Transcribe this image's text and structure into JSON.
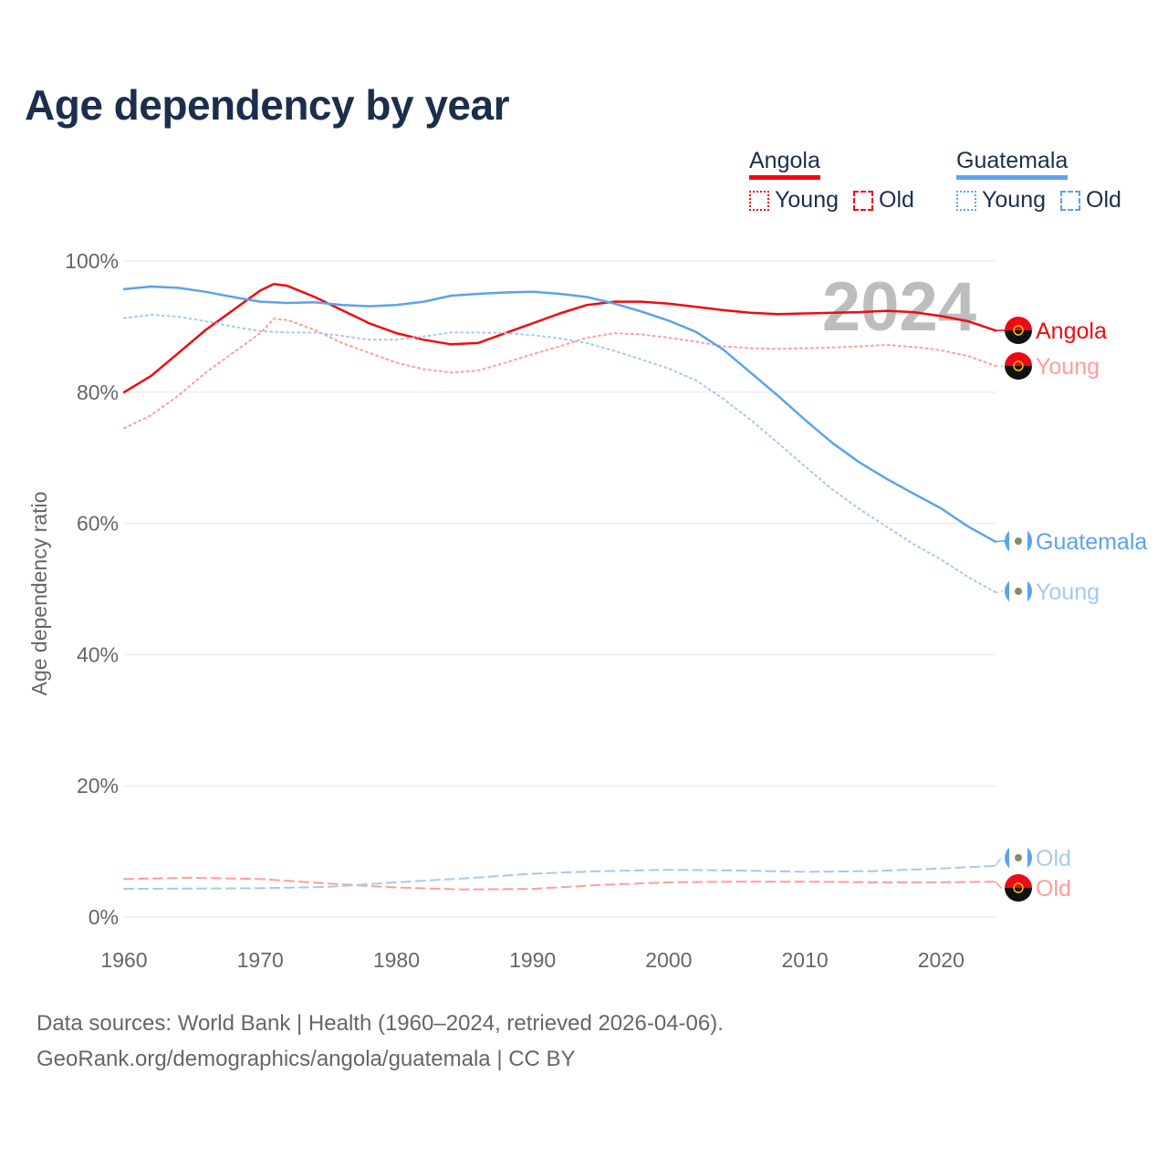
{
  "title": "Age dependency by year",
  "legend": [
    {
      "country": "Angola",
      "color": "#f00a10",
      "light": "#ff9d9a",
      "young_label": "Young",
      "old_label": "Old"
    },
    {
      "country": "Guatemala",
      "color": "#5ba3ec",
      "light": "#a6c9ee",
      "young_label": "Young",
      "old_label": "Old"
    }
  ],
  "footer": {
    "line1": "Data sources: World Bank | Health (1960–2024, retrieved 2026-04-06).",
    "line2": "GeoRank.org/demographics/angola/guatemala | CC BY"
  },
  "chart_data": {
    "type": "line",
    "title": "Age dependency by year",
    "xlabel": "",
    "ylabel": "Age dependency ratio",
    "xlim": [
      1960,
      2024
    ],
    "ylim": [
      0,
      100
    ],
    "x_ticks": [
      1960,
      1970,
      1980,
      1990,
      2000,
      2010,
      2020
    ],
    "y_ticks": [
      0,
      20,
      40,
      60,
      80,
      100
    ],
    "y_tick_labels": [
      "0%",
      "20%",
      "40%",
      "60%",
      "80%",
      "100%"
    ],
    "grid": true,
    "year_watermark": "2024",
    "series": [
      {
        "name": "Angola",
        "label": "Angola",
        "style": "solid",
        "color": "#f00a10",
        "label_color": "#f00a10",
        "x": [
          1960,
          1962,
          1964,
          1966,
          1968,
          1970,
          1971,
          1972,
          1974,
          1976,
          1978,
          1980,
          1982,
          1984,
          1986,
          1988,
          1990,
          1992,
          1994,
          1996,
          1998,
          2000,
          2002,
          2004,
          2006,
          2008,
          2010,
          2012,
          2014,
          2016,
          2018,
          2020,
          2022,
          2024
        ],
        "values": [
          80,
          82.5,
          86,
          89.5,
          92.5,
          95.5,
          96.5,
          96.2,
          94.5,
          92.5,
          90.5,
          89,
          88,
          87.3,
          87.5,
          89,
          90.5,
          92,
          93.3,
          93.8,
          93.8,
          93.5,
          93,
          92.5,
          92.1,
          91.9,
          92,
          92.1,
          92.2,
          92.4,
          92.2,
          91.6,
          90.8,
          89.4
        ]
      },
      {
        "name": "Angola Young",
        "label": "Young",
        "style": "dotted",
        "color": "#ff9d9a",
        "label_color": "#ff9d9a",
        "x": [
          1960,
          1962,
          1964,
          1966,
          1968,
          1970,
          1971,
          1972,
          1974,
          1976,
          1978,
          1980,
          1982,
          1984,
          1986,
          1988,
          1990,
          1992,
          1994,
          1996,
          1998,
          2000,
          2002,
          2004,
          2006,
          2008,
          2010,
          2012,
          2014,
          2016,
          2018,
          2020,
          2022,
          2024
        ],
        "values": [
          74.5,
          76.5,
          79.5,
          83,
          86,
          89,
          91.2,
          91,
          89.5,
          87.5,
          86,
          84.5,
          83.5,
          83,
          83.3,
          84.5,
          85.8,
          87,
          88.3,
          89,
          88.8,
          88.3,
          87.7,
          87,
          86.7,
          86.6,
          86.7,
          86.8,
          87,
          87.2,
          86.9,
          86.4,
          85.5,
          84
        ]
      },
      {
        "name": "Angola Old",
        "label": "Old",
        "style": "dashed",
        "color": "#ff9d9a",
        "label_color": "#ff9d9a",
        "x": [
          1960,
          1965,
          1970,
          1975,
          1980,
          1985,
          1990,
          1995,
          2000,
          2005,
          2010,
          2015,
          2020,
          2024
        ],
        "values": [
          5.8,
          6.0,
          5.8,
          5.1,
          4.5,
          4.2,
          4.3,
          4.9,
          5.3,
          5.4,
          5.4,
          5.3,
          5.3,
          5.4
        ]
      },
      {
        "name": "Guatemala",
        "label": "Guatemala",
        "style": "solid",
        "color": "#5ba3ec",
        "label_color": "#5ba3ec",
        "x": [
          1960,
          1962,
          1964,
          1966,
          1968,
          1970,
          1972,
          1974,
          1976,
          1978,
          1980,
          1982,
          1984,
          1986,
          1988,
          1990,
          1992,
          1994,
          1996,
          1998,
          2000,
          2002,
          2004,
          2006,
          2008,
          2010,
          2012,
          2014,
          2016,
          2018,
          2020,
          2022,
          2024
        ],
        "values": [
          95.7,
          96.1,
          95.9,
          95.3,
          94.5,
          93.8,
          93.6,
          93.7,
          93.3,
          93.1,
          93.3,
          93.8,
          94.7,
          95,
          95.2,
          95.3,
          95,
          94.5,
          93.5,
          92.3,
          90.9,
          89.2,
          86.5,
          83,
          79.5,
          75.8,
          72.3,
          69.3,
          66.8,
          64.5,
          62.3,
          59.5,
          57.2
        ]
      },
      {
        "name": "Guatemala Young",
        "label": "Young",
        "style": "dotted",
        "color": "#a6c9ee",
        "label_color": "#a6c9ee",
        "x": [
          1960,
          1962,
          1964,
          1966,
          1968,
          1970,
          1972,
          1974,
          1976,
          1978,
          1980,
          1982,
          1984,
          1986,
          1988,
          1990,
          1992,
          1994,
          1996,
          1998,
          2000,
          2002,
          2004,
          2006,
          2008,
          2010,
          2012,
          2014,
          2016,
          2018,
          2020,
          2022,
          2024
        ],
        "values": [
          91.3,
          91.8,
          91.5,
          90.8,
          90,
          89.3,
          89.1,
          89.1,
          88.6,
          88,
          88,
          88.5,
          89.1,
          89.1,
          89,
          88.7,
          88.2,
          87.5,
          86.3,
          85,
          83.6,
          81.8,
          79,
          75.8,
          72.3,
          68.7,
          65.2,
          62.2,
          59.5,
          56.8,
          54.5,
          51.8,
          49.5
        ]
      },
      {
        "name": "Guatemala Old",
        "label": "Old",
        "style": "dashed",
        "color": "#a6c9ee",
        "label_color": "#a6c9ee",
        "x": [
          1960,
          1970,
          1975,
          1980,
          1985,
          1990,
          1995,
          2000,
          2005,
          2010,
          2015,
          2020,
          2024
        ],
        "values": [
          4.3,
          4.4,
          4.6,
          5.3,
          5.9,
          6.6,
          7.0,
          7.2,
          7.1,
          6.9,
          7.0,
          7.4,
          7.8
        ]
      }
    ]
  }
}
